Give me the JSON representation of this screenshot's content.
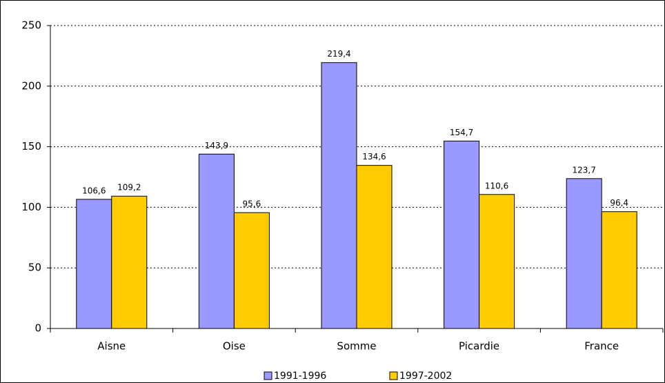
{
  "chart_data": {
    "type": "bar",
    "categories": [
      "Aisne",
      "Oise",
      "Somme",
      "Picardie",
      "France"
    ],
    "series": [
      {
        "name": "1991-1996",
        "color": "#9999ff",
        "values": [
          106.6,
          143.9,
          219.4,
          154.7,
          123.7
        ],
        "value_labels": [
          "106,6",
          "143,9",
          "219,4",
          "154,7",
          "123,7"
        ]
      },
      {
        "name": "1997-2002",
        "color": "#ffcc00",
        "values": [
          109.2,
          95.6,
          134.6,
          110.6,
          96.4
        ],
        "value_labels": [
          "109,2",
          "95,6",
          "134,6",
          "110,6",
          "96,4"
        ]
      }
    ],
    "ylim": [
      0,
      250
    ],
    "yticks": [
      0,
      50,
      100,
      150,
      200,
      250
    ],
    "grid": true,
    "legend": "bottom"
  }
}
